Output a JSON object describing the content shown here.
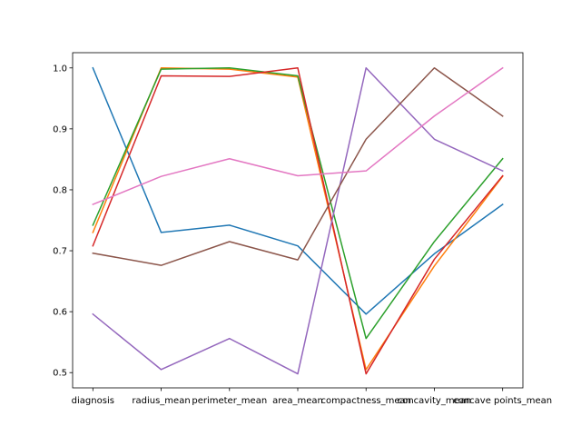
{
  "chart_data": {
    "type": "line",
    "title": "",
    "xlabel": "",
    "ylabel": "",
    "categories": [
      "diagnosis",
      "radius_mean",
      "perimeter_mean",
      "area_mean",
      "compactness_mean",
      "concavity_mean",
      "concave points_mean"
    ],
    "ylim": [
      0.475,
      1.025
    ],
    "yticks": [
      0.5,
      0.6,
      0.7,
      0.8,
      0.9,
      1.0
    ],
    "ytick_labels": [
      "0.5",
      "0.6",
      "0.7",
      "0.8",
      "0.9",
      "1.0"
    ],
    "grid": false,
    "series": [
      {
        "color": "#1f77b4",
        "values": [
          1.0,
          0.73,
          0.742,
          0.708,
          0.596,
          0.695,
          0.776
        ]
      },
      {
        "color": "#ff7f0e",
        "values": [
          0.73,
          1.0,
          0.998,
          0.985,
          0.505,
          0.675,
          0.822
        ]
      },
      {
        "color": "#2ca02c",
        "values": [
          0.742,
          0.998,
          1.0,
          0.987,
          0.556,
          0.715,
          0.851
        ]
      },
      {
        "color": "#d62728",
        "values": [
          0.708,
          0.987,
          0.986,
          1.0,
          0.498,
          0.686,
          0.823
        ]
      },
      {
        "color": "#9467bd",
        "values": [
          0.596,
          0.505,
          0.556,
          0.498,
          1.0,
          0.883,
          0.831
        ]
      },
      {
        "color": "#8c564b",
        "values": [
          0.696,
          0.676,
          0.715,
          0.685,
          0.883,
          1.0,
          0.921
        ]
      },
      {
        "color": "#e377c2",
        "values": [
          0.776,
          0.822,
          0.851,
          0.823,
          0.831,
          0.921,
          1.0
        ]
      }
    ]
  }
}
